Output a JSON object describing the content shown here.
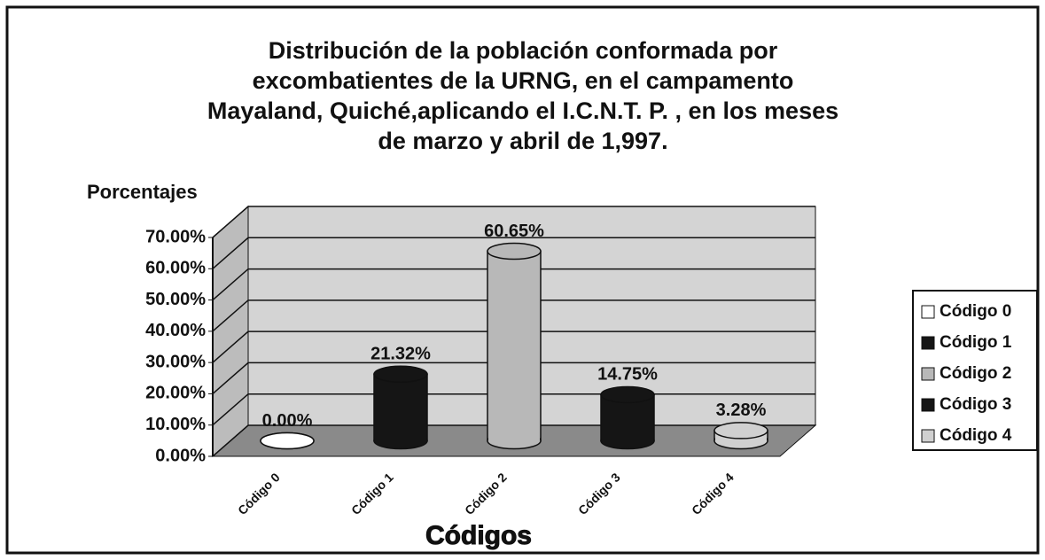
{
  "chart_data": {
    "type": "bar3d",
    "title": "Distribución de la población conformada por excombatientes de la URNG,  en el campamento Mayaland, Quiché,aplicando el I.C.N.T. P. , en los meses de marzo y abril de 1,997.",
    "y_label": "Porcentajes",
    "x_label": "Códigos",
    "categories": [
      "Código 0",
      "Código 1",
      "Código 2",
      "Código 3",
      "Código 4"
    ],
    "values": [
      0,
      21.32,
      60.65,
      14.75,
      3.28
    ],
    "value_labels": [
      "0.00%",
      "21.32%",
      "60.65%",
      "14.75%",
      "3.28%"
    ],
    "colors": [
      "#ffffff",
      "#151515",
      "#b8b8b8",
      "#151515",
      "#d0d0d0"
    ],
    "ylim": [
      0,
      70
    ],
    "yticks": [
      {
        "value": 0,
        "label": "0.00%"
      },
      {
        "value": 10,
        "label": "10.00%"
      },
      {
        "value": 20,
        "label": "20.00%"
      },
      {
        "value": 30,
        "label": "30.00%"
      },
      {
        "value": 40,
        "label": "40.00%"
      },
      {
        "value": 50,
        "label": "50.00%"
      },
      {
        "value": 60,
        "label": "60.00%"
      },
      {
        "value": 70,
        "label": "70.00%"
      }
    ],
    "grid": true,
    "legend": "right"
  }
}
